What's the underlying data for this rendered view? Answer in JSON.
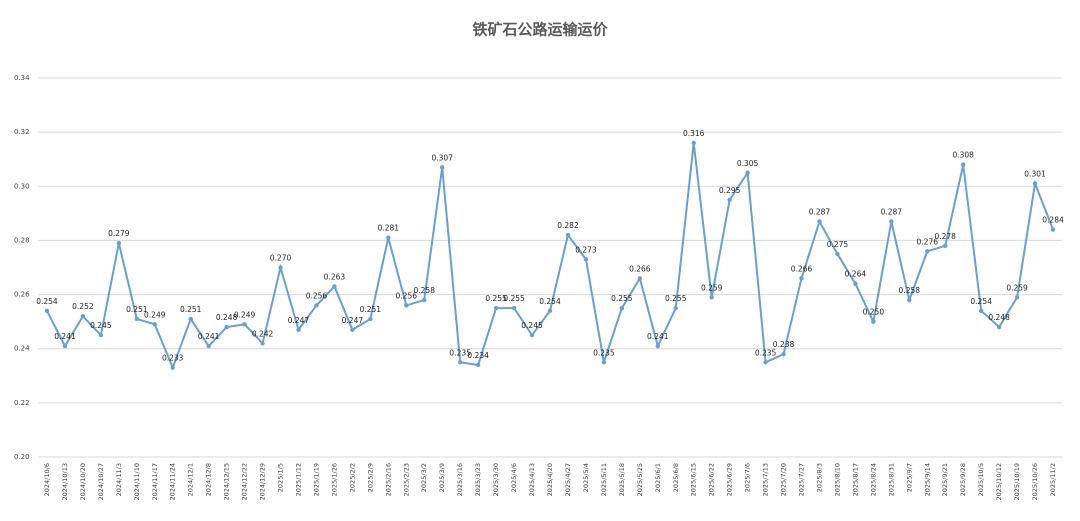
{
  "chart_data": {
    "type": "line",
    "title": "铁矿石公路运输运价",
    "categories": [
      "2024/10/6",
      "2024/10/13",
      "2024/10/20",
      "2024/10/27",
      "2024/11/3",
      "2024/11/10",
      "2024/11/17",
      "2024/11/24",
      "2024/12/1",
      "2024/12/8",
      "2024/12/15",
      "2024/12/22",
      "2024/12/29",
      "2025/1/5",
      "2025/1/12",
      "2025/1/19",
      "2025/1/26",
      "2025/2/2",
      "2025/2/9",
      "2025/2/16",
      "2025/2/23",
      "2025/3/2",
      "2025/3/9",
      "2025/3/16",
      "2025/3/23",
      "2025/3/30",
      "2025/4/6",
      "2025/4/13",
      "2025/4/20",
      "2025/4/27",
      "2025/5/4",
      "2025/5/11",
      "2025/5/18",
      "2025/5/25",
      "2025/6/1",
      "2025/6/8",
      "2025/6/15",
      "2025/6/22",
      "2025/6/29",
      "2025/7/6",
      "2025/7/13",
      "2025/7/20",
      "2025/7/27",
      "2025/8/3",
      "2025/8/10",
      "2025/8/17",
      "2025/8/24",
      "2025/8/31",
      "2025/9/7",
      "2025/9/14",
      "2025/9/21",
      "2025/9/28",
      "2025/10/5",
      "2025/10/12",
      "2025/10/19",
      "2025/10/26",
      "2025/11/2"
    ],
    "values": [
      0.254,
      0.241,
      0.252,
      0.245,
      0.279,
      0.251,
      0.249,
      0.233,
      0.251,
      0.241,
      0.248,
      0.249,
      0.242,
      0.27,
      0.247,
      0.256,
      0.263,
      0.247,
      0.251,
      0.281,
      0.256,
      0.258,
      0.307,
      0.235,
      0.234,
      0.255,
      0.255,
      0.245,
      0.254,
      0.282,
      0.273,
      0.235,
      0.255,
      0.266,
      0.241,
      0.255,
      0.316,
      0.259,
      0.295,
      0.305,
      0.235,
      0.238,
      0.266,
      0.287,
      0.275,
      0.264,
      0.25,
      0.287,
      0.258,
      0.276,
      0.278,
      0.308,
      0.254,
      0.248,
      0.259,
      0.301,
      0.284
    ],
    "value_labels": [
      "0.254",
      "0.241",
      "0.252",
      "0.245",
      "0.279",
      "0.251",
      "0.249",
      "0.233",
      "0.251",
      "0.241",
      "0.248",
      "0.249",
      "0.242",
      "0.270",
      "0.247",
      "0.256",
      "0.263",
      "0.247",
      "0.251",
      "0.281",
      "0.256",
      "0.258",
      "0.307",
      "0.235",
      "0.234",
      "0.255",
      "0.255",
      "0.245",
      "0.254",
      "0.282",
      "0.273",
      "0.235",
      "0.255",
      "0.266",
      "0.241",
      "0.255",
      "0.316",
      "0.259",
      "0.295",
      "0.305",
      "0.235",
      "0.238",
      "0.266",
      "0.287",
      "0.275",
      "0.264",
      "0.250",
      "0.287",
      "0.258",
      "0.276",
      "0.278",
      "0.308",
      "0.254",
      "0.248",
      "0.259",
      "0.301",
      "0.284"
    ],
    "color": "#6a9fd0",
    "ylim": [
      0.2,
      0.34
    ],
    "yticks": [
      {
        "value": 0.2,
        "label": "0.20"
      },
      {
        "value": 0.22,
        "label": "0.22"
      },
      {
        "value": 0.24,
        "label": "0.24"
      },
      {
        "value": 0.26,
        "label": "0.26"
      },
      {
        "value": 0.28,
        "label": "0.28"
      },
      {
        "value": 0.3,
        "label": "0.30"
      },
      {
        "value": 0.32,
        "label": "0.32"
      },
      {
        "value": 0.34,
        "label": "0.34"
      }
    ],
    "grid": true
  }
}
